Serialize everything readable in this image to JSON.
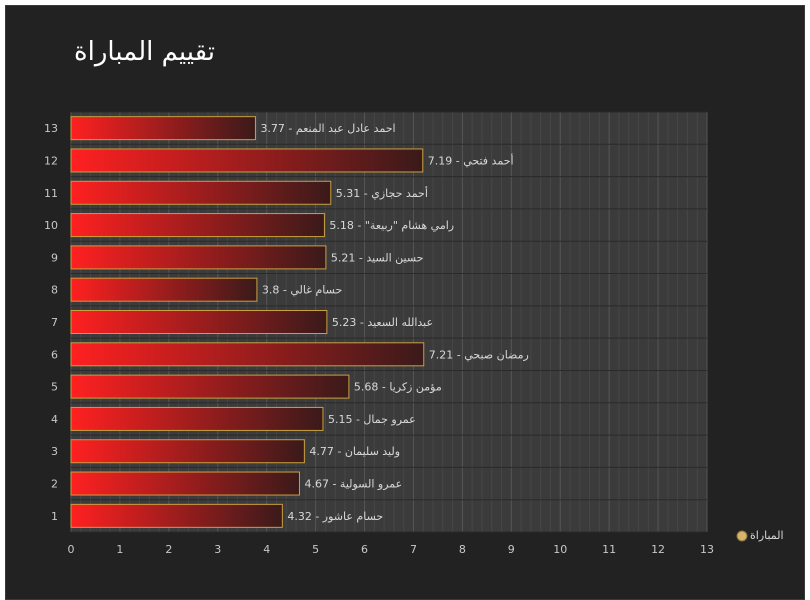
{
  "chart_data": {
    "type": "bar",
    "orientation": "horizontal",
    "title": "تقييم المباراة",
    "categories": [
      "1",
      "2",
      "3",
      "4",
      "5",
      "6",
      "7",
      "8",
      "9",
      "10",
      "11",
      "12",
      "13"
    ],
    "series": [
      {
        "name": "المباراة",
        "values": [
          4.32,
          4.67,
          4.77,
          5.15,
          5.68,
          7.21,
          5.23,
          3.8,
          5.21,
          5.18,
          5.31,
          7.19,
          3.77
        ]
      }
    ],
    "data_labels": [
      "حسام عاشور - 4.32",
      "عمرو السولية - 4.67",
      "وليد سليمان  - 4.77",
      "عمرو جمال - 5.15",
      "مؤمن زكريا  - 5.68",
      "رمضان صبحي - 7.21",
      "عبدالله السعيد  - 5.23",
      "حسام غالي - 3.8",
      "حسين السيد - 5.21",
      "رامي هشام \"ربيعة\" - 5.18",
      "أحمد حجازي - 5.31",
      "أحمد فتحي - 7.19",
      "احمد عادل عبد المنعم - 3.77"
    ],
    "xlim": [
      0,
      13
    ],
    "xticks": [
      0,
      1,
      2,
      3,
      4,
      5,
      6,
      7,
      8,
      9,
      10,
      11,
      12,
      13
    ],
    "grid": true,
    "legend": "bottom-right"
  },
  "colors": {
    "background": "#222222",
    "plot_background": "#3b3b3b",
    "bar_start": "#ff2020",
    "bar_end": "#3a1a1a",
    "bar_border": "#c8a040",
    "legend_marker": "#d6b46a"
  }
}
